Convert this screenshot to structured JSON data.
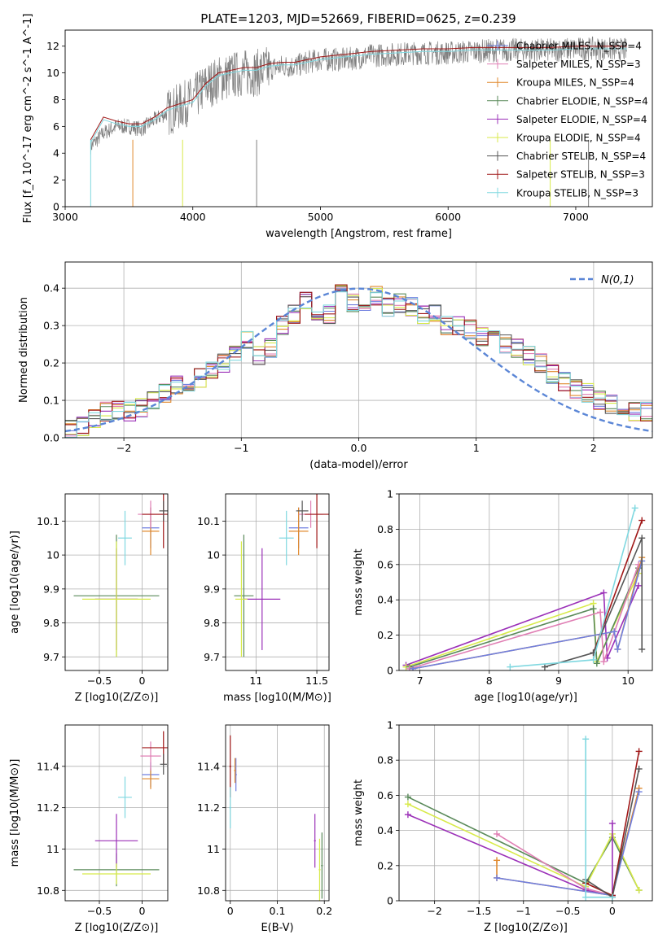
{
  "figure": {
    "title": "PLATE=1203, MJD=52669, FIBERID=0625, z=0.239"
  },
  "colors": {
    "chabrier_miles": "#6f7fe0",
    "salpeter_miles": "#e07fb4",
    "kroupa_miles": "#e08a2e",
    "chabrier_elodie": "#5a8a5a",
    "salpeter_elodie": "#9b30b8",
    "kroupa_elodie": "#d8ea4a",
    "chabrier_stelib": "#555555",
    "salpeter_stelib": "#a01818",
    "kroupa_stelib": "#80d8e0",
    "gaussian": "#5b86d6",
    "data": "#808080"
  },
  "chart_data": [
    {
      "id": "spectrum",
      "type": "line",
      "xlabel": "wavelength [Angstrom, rest frame]",
      "ylabel": "Flux [f_λ 10^-17 erg cm^-2 s^-1 A^-1]",
      "xlim": [
        3000,
        7600
      ],
      "ylim": [
        0,
        13.2
      ],
      "xticks": [
        3000,
        4000,
        5000,
        6000,
        7000
      ],
      "yticks": [
        0,
        2,
        4,
        6,
        8,
        10,
        12
      ],
      "legend": "top-right",
      "data_x": [
        3200,
        3300,
        3400,
        3500,
        3600,
        3700,
        3800,
        3900,
        4000,
        4100,
        4200,
        4300,
        4400,
        4500,
        4600,
        4700,
        4800,
        4900,
        5000,
        5200,
        5400,
        5600,
        5800,
        6000,
        6200,
        6400,
        6600,
        6800,
        7000,
        7200,
        7400
      ],
      "data_y": [
        4.5,
        5.5,
        6.0,
        6.0,
        5.8,
        6.5,
        7.0,
        7.5,
        8.0,
        9.0,
        9.5,
        9.8,
        10.0,
        10.0,
        10.3,
        10.5,
        10.5,
        10.8,
        11.0,
        11.0,
        11.3,
        11.4,
        11.5,
        11.5,
        11.6,
        11.7,
        11.7,
        11.7,
        11.8,
        11.8,
        11.7
      ],
      "model_x": [
        3200,
        3300,
        3400,
        3500,
        3600,
        3700,
        3800,
        3900,
        4000,
        4100,
        4200,
        4300,
        4400,
        4500,
        4600,
        4700,
        4800,
        4900,
        5000,
        5200,
        5400,
        5600,
        5800,
        6000,
        6200,
        6400,
        6600,
        6800,
        7000,
        7200,
        7400
      ],
      "model_y": [
        4.8,
        6.5,
        6.2,
        6.0,
        6.0,
        6.5,
        7.2,
        7.5,
        7.8,
        9.0,
        9.8,
        10.0,
        10.2,
        10.2,
        10.5,
        10.6,
        10.6,
        10.8,
        11.0,
        11.2,
        11.4,
        11.5,
        11.6,
        11.6,
        11.7,
        11.7,
        11.7,
        11.7,
        11.8,
        11.8,
        11.8
      ],
      "series": [
        {
          "name": "Chabrier MILES, N_SSP=4",
          "color_key": "chabrier_miles"
        },
        {
          "name": "Salpeter MILES, N_SSP=3",
          "color_key": "salpeter_miles"
        },
        {
          "name": "Kroupa MILES, N_SSP=4",
          "color_key": "kroupa_miles"
        },
        {
          "name": "Chabrier ELODIE, N_SSP=4",
          "color_key": "chabrier_elodie"
        },
        {
          "name": "Salpeter ELODIE, N_SSP=4",
          "color_key": "salpeter_elodie"
        },
        {
          "name": "Kroupa ELODIE, N_SSP=4",
          "color_key": "kroupa_elodie"
        },
        {
          "name": "Chabrier STELIB, N_SSP=4",
          "color_key": "chabrier_stelib"
        },
        {
          "name": "Salpeter STELIB, N_SSP=3",
          "color_key": "salpeter_stelib"
        },
        {
          "name": "Kroupa STELIB, N_SSP=3",
          "color_key": "kroupa_stelib"
        }
      ]
    },
    {
      "id": "residuals",
      "type": "line",
      "xlabel": "(data-model)/error",
      "ylabel": "Normed distribution",
      "xlim": [
        -2.5,
        2.5
      ],
      "ylim": [
        0,
        0.47
      ],
      "xticks": [
        -2,
        -1,
        0,
        1,
        2
      ],
      "yticks": [
        0.0,
        0.1,
        0.2,
        0.3,
        0.4
      ],
      "grid": true,
      "legend": "top-right",
      "gaussian_label": "N(0,1)",
      "bins": [
        -2.5,
        -2.4,
        -2.3,
        -2.2,
        -2.1,
        -2.0,
        -1.9,
        -1.8,
        -1.7,
        -1.6,
        -1.5,
        -1.4,
        -1.3,
        -1.2,
        -1.1,
        -1.0,
        -0.9,
        -0.8,
        -0.7,
        -0.6,
        -0.5,
        -0.4,
        -0.3,
        -0.2,
        -0.1,
        0.0,
        0.1,
        0.2,
        0.3,
        0.4,
        0.5,
        0.6,
        0.7,
        0.8,
        0.9,
        1.0,
        1.1,
        1.2,
        1.3,
        1.4,
        1.5,
        1.6,
        1.7,
        1.8,
        1.9,
        2.0,
        2.1,
        2.2,
        2.3,
        2.4
      ],
      "hist_base": [
        0.025,
        0.03,
        0.05,
        0.07,
        0.075,
        0.07,
        0.08,
        0.1,
        0.12,
        0.14,
        0.15,
        0.16,
        0.18,
        0.2,
        0.22,
        0.26,
        0.22,
        0.24,
        0.3,
        0.33,
        0.37,
        0.34,
        0.33,
        0.4,
        0.36,
        0.33,
        0.38,
        0.35,
        0.36,
        0.35,
        0.33,
        0.33,
        0.3,
        0.3,
        0.29,
        0.27,
        0.27,
        0.25,
        0.24,
        0.22,
        0.2,
        0.17,
        0.15,
        0.13,
        0.12,
        0.1,
        0.09,
        0.08,
        0.07,
        0.07
      ]
    },
    {
      "id": "age_vs_Z",
      "type": "scatter",
      "xlabel": "Z [log10(Z/Z⊙)]",
      "ylabel": "age [log10(age/yr)]",
      "xlim": [
        -0.9,
        0.3
      ],
      "ylim": [
        9.66,
        10.18
      ],
      "xticks": [
        -0.5,
        0.0
      ],
      "yticks": [
        9.7,
        9.8,
        9.9,
        10.0,
        10.1
      ],
      "points": [
        {
          "x": -0.3,
          "y": 9.88,
          "ex": 0.5,
          "ey": 0.18,
          "color_key": "chabrier_elodie"
        },
        {
          "x": -0.3,
          "y": 9.87,
          "ex": 0.25,
          "ey": 0.15,
          "color_key": "salpeter_elodie"
        },
        {
          "x": -0.3,
          "y": 9.87,
          "ex": 0.4,
          "ey": 0.17,
          "color_key": "kroupa_elodie"
        },
        {
          "x": -0.2,
          "y": 10.05,
          "ex": 0.08,
          "ey": 0.08,
          "color_key": "kroupa_stelib"
        },
        {
          "x": 0.1,
          "y": 10.08,
          "ex": 0.1,
          "ey": 0.06,
          "color_key": "chabrier_miles"
        },
        {
          "x": 0.1,
          "y": 10.07,
          "ex": 0.1,
          "ey": 0.07,
          "color_key": "kroupa_miles"
        },
        {
          "x": 0.1,
          "y": 10.12,
          "ex": 0.15,
          "ey": 0.04,
          "color_key": "salpeter_miles"
        },
        {
          "x": 0.25,
          "y": 10.12,
          "ex": 0.25,
          "ey": 0.1,
          "color_key": "salpeter_stelib"
        },
        {
          "x": 0.25,
          "y": 10.13,
          "ex": 0.05,
          "ey": 0.03,
          "color_key": "chabrier_stelib"
        }
      ]
    },
    {
      "id": "age_vs_mass",
      "type": "scatter",
      "xlabel": "mass [log10(M/M⊙)]",
      "ylabel": "",
      "xlim": [
        10.75,
        11.6
      ],
      "ylim": [
        9.66,
        10.18
      ],
      "xticks": [
        11.0,
        11.5
      ],
      "yticks": [
        9.7,
        9.8,
        9.9,
        10.0,
        10.1
      ],
      "points": [
        {
          "x": 10.9,
          "y": 9.88,
          "ex": 0.08,
          "ey": 0.18,
          "color_key": "chabrier_elodie"
        },
        {
          "x": 11.05,
          "y": 9.87,
          "ex": 0.15,
          "ey": 0.15,
          "color_key": "salpeter_elodie"
        },
        {
          "x": 10.88,
          "y": 9.87,
          "ex": 0.05,
          "ey": 0.17,
          "color_key": "kroupa_elodie"
        },
        {
          "x": 11.25,
          "y": 10.05,
          "ex": 0.06,
          "ey": 0.08,
          "color_key": "kroupa_stelib"
        },
        {
          "x": 11.35,
          "y": 10.08,
          "ex": 0.08,
          "ey": 0.06,
          "color_key": "chabrier_miles"
        },
        {
          "x": 11.35,
          "y": 10.07,
          "ex": 0.08,
          "ey": 0.07,
          "color_key": "kroupa_miles"
        },
        {
          "x": 11.45,
          "y": 10.12,
          "ex": 0.1,
          "ey": 0.04,
          "color_key": "salpeter_miles"
        },
        {
          "x": 11.5,
          "y": 10.12,
          "ex": 0.1,
          "ey": 0.1,
          "color_key": "salpeter_stelib"
        },
        {
          "x": 11.38,
          "y": 10.13,
          "ex": 0.05,
          "ey": 0.03,
          "color_key": "chabrier_stelib"
        }
      ]
    },
    {
      "id": "weight_vs_age",
      "type": "line",
      "xlabel": "age [log10(age/yr)]",
      "ylabel": "mass weight",
      "xlim": [
        6.7,
        10.35
      ],
      "ylim": [
        0,
        1
      ],
      "xticks": [
        7,
        8,
        9,
        10
      ],
      "yticks": [
        0.0,
        0.2,
        0.4,
        0.6,
        0.8,
        1.0
      ],
      "grid": true,
      "series": [
        {
          "color_key": "salpeter_elodie",
          "x": [
            6.8,
            9.65,
            9.7,
            10.15
          ],
          "y": [
            0.03,
            0.44,
            0.07,
            0.48
          ]
        },
        {
          "color_key": "kroupa_elodie",
          "x": [
            6.8,
            9.5,
            9.55,
            10.15
          ],
          "y": [
            0.02,
            0.38,
            0.05,
            0.55
          ]
        },
        {
          "color_key": "chabrier_elodie",
          "x": [
            6.85,
            9.5,
            9.55,
            10.15
          ],
          "y": [
            0.02,
            0.35,
            0.04,
            0.58
          ]
        },
        {
          "color_key": "salpeter_miles",
          "x": [
            6.85,
            9.6,
            9.65,
            10.15
          ],
          "y": [
            0.01,
            0.33,
            0.05,
            0.6
          ]
        },
        {
          "color_key": "kroupa_miles",
          "x": [
            6.9,
            9.8,
            9.85,
            10.2
          ],
          "y": [
            0.01,
            0.22,
            0.12,
            0.64
          ]
        },
        {
          "color_key": "chabrier_miles",
          "x": [
            6.9,
            9.8,
            9.85,
            10.2
          ],
          "y": [
            0.01,
            0.22,
            0.12,
            0.62
          ]
        },
        {
          "color_key": "salpeter_stelib",
          "x": [
            9.5,
            10.2
          ],
          "y": [
            0.1,
            0.85
          ]
        },
        {
          "color_key": "chabrier_stelib",
          "x": [
            8.8,
            9.5,
            10.2,
            10.2
          ],
          "y": [
            0.02,
            0.1,
            0.75,
            0.12
          ]
        },
        {
          "color_key": "kroupa_stelib",
          "x": [
            8.3,
            9.5,
            10.1
          ],
          "y": [
            0.02,
            0.06,
            0.92
          ]
        }
      ]
    },
    {
      "id": "mass_vs_Z",
      "type": "scatter",
      "xlabel": "Z [log10(Z/Z⊙)]",
      "ylabel": "mass [log10(M/M⊙)]",
      "xlim": [
        -0.9,
        0.3
      ],
      "ylim": [
        10.75,
        11.6
      ],
      "xticks": [
        -0.5,
        0.0
      ],
      "yticks": [
        10.8,
        11.0,
        11.2,
        11.4
      ],
      "points": [
        {
          "x": -0.3,
          "y": 10.9,
          "ex": 0.5,
          "ey": 0.08,
          "color_key": "chabrier_elodie"
        },
        {
          "x": -0.3,
          "y": 11.04,
          "ex": 0.25,
          "ey": 0.13,
          "color_key": "salpeter_elodie"
        },
        {
          "x": -0.3,
          "y": 10.88,
          "ex": 0.4,
          "ey": 0.05,
          "color_key": "kroupa_elodie"
        },
        {
          "x": -0.2,
          "y": 11.25,
          "ex": 0.08,
          "ey": 0.1,
          "color_key": "kroupa_stelib"
        },
        {
          "x": 0.1,
          "y": 11.36,
          "ex": 0.1,
          "ey": 0.06,
          "color_key": "chabrier_miles"
        },
        {
          "x": 0.1,
          "y": 11.34,
          "ex": 0.1,
          "ey": 0.05,
          "color_key": "kroupa_miles"
        },
        {
          "x": 0.1,
          "y": 11.45,
          "ex": 0.12,
          "ey": 0.07,
          "color_key": "salpeter_miles"
        },
        {
          "x": 0.25,
          "y": 11.49,
          "ex": 0.25,
          "ey": 0.08,
          "color_key": "salpeter_stelib"
        },
        {
          "x": 0.25,
          "y": 11.41,
          "ex": 0.04,
          "ey": 0.05,
          "color_key": "chabrier_stelib"
        }
      ]
    },
    {
      "id": "mass_vs_ebv",
      "type": "scatter",
      "xlabel": "E(B-V)",
      "ylabel": "",
      "xlim": [
        -0.01,
        0.21
      ],
      "ylim": [
        10.75,
        11.6
      ],
      "xticks": [
        0.0,
        0.1,
        0.2
      ],
      "yticks": [
        10.8,
        11.0,
        11.2,
        11.4
      ],
      "points": [
        {
          "x": 0.0,
          "y": 11.4,
          "ex": 0.002,
          "ey": 0.15,
          "color_key": "salpeter_stelib"
        },
        {
          "x": 0.012,
          "y": 11.36,
          "ex": 0.002,
          "ey": 0.08,
          "color_key": "chabrier_miles"
        },
        {
          "x": 0.01,
          "y": 11.38,
          "ex": 0.002,
          "ey": 0.06,
          "color_key": "kroupa_miles"
        },
        {
          "x": 0.0,
          "y": 11.2,
          "ex": 0.002,
          "ey": 0.1,
          "color_key": "kroupa_stelib"
        },
        {
          "x": 0.18,
          "y": 11.04,
          "ex": 0.002,
          "ey": 0.13,
          "color_key": "salpeter_elodie"
        },
        {
          "x": 0.19,
          "y": 10.9,
          "ex": 0.002,
          "ey": 0.15,
          "color_key": "kroupa_elodie"
        },
        {
          "x": 0.195,
          "y": 10.92,
          "ex": 0.002,
          "ey": 0.16,
          "color_key": "chabrier_elodie"
        }
      ]
    },
    {
      "id": "weight_vs_Z",
      "type": "line",
      "xlabel": "Z [log10(Z/Z⊙)]",
      "ylabel": "mass weight",
      "xlim": [
        -2.4,
        0.45
      ],
      "ylim": [
        0,
        1
      ],
      "xticks": [
        -2.0,
        -1.5,
        -1.0,
        -0.5,
        0.0
      ],
      "yticks": [
        0.0,
        0.2,
        0.4,
        0.6,
        0.8,
        1.0
      ],
      "grid": true,
      "series": [
        {
          "color_key": "chabrier_elodie",
          "x": [
            -2.3,
            -0.3,
            0.0,
            0.3
          ],
          "y": [
            0.59,
            0.1,
            0.36,
            0.06
          ]
        },
        {
          "color_key": "kroupa_elodie",
          "x": [
            -2.3,
            -0.3,
            0.0,
            0.3
          ],
          "y": [
            0.55,
            0.08,
            0.38,
            0.06
          ]
        },
        {
          "color_key": "salpeter_elodie",
          "x": [
            -2.3,
            -0.3,
            0.0,
            0.0
          ],
          "y": [
            0.49,
            0.06,
            0.03,
            0.44
          ]
        },
        {
          "color_key": "salpeter_miles",
          "x": [
            -1.3,
            -0.3,
            0.0
          ],
          "y": [
            0.38,
            0.07,
            0.03
          ]
        },
        {
          "color_key": "kroupa_miles",
          "x": [
            -1.3,
            -1.3,
            0.0,
            0.3
          ],
          "y": [
            0.23,
            0.13,
            0.03,
            0.64
          ]
        },
        {
          "color_key": "chabrier_miles",
          "x": [
            -1.3,
            0.0,
            0.3
          ],
          "y": [
            0.13,
            0.03,
            0.62
          ]
        },
        {
          "color_key": "salpeter_stelib",
          "x": [
            -0.3,
            0.0,
            0.3
          ],
          "y": [
            0.1,
            0.03,
            0.85
          ]
        },
        {
          "color_key": "chabrier_stelib",
          "x": [
            -0.3,
            0.0,
            0.3
          ],
          "y": [
            0.12,
            0.02,
            0.75
          ]
        },
        {
          "color_key": "kroupa_stelib",
          "x": [
            -0.3,
            -0.3,
            0.0
          ],
          "y": [
            0.92,
            0.02,
            0.02
          ]
        }
      ]
    }
  ]
}
